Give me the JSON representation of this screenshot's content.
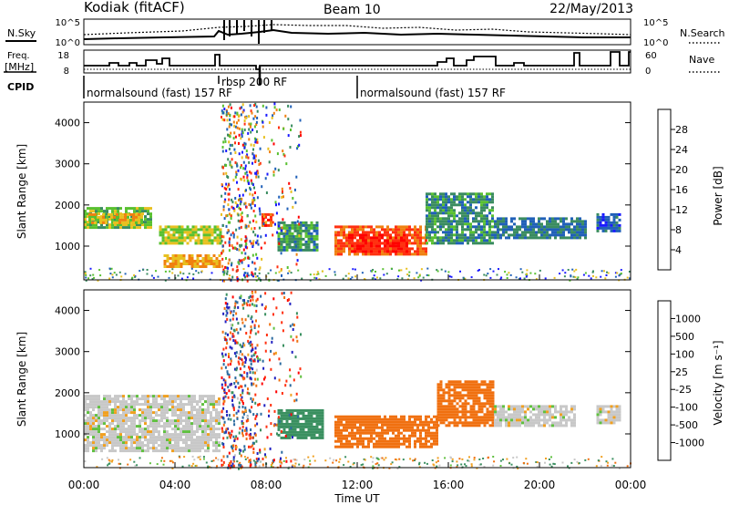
{
  "header": {
    "radar": "Kodiak (fitACF)",
    "beam": "Beam 10",
    "date": "22/May/2013"
  },
  "strip_labels": {
    "nsky": "N.Sky",
    "nsearch": "N.Search",
    "freq_top": "Freq.",
    "freq_unit": "[MHz]",
    "nave": "Nave",
    "cpid": "CPID",
    "nsky_ticks": [
      "10^5",
      "10^0"
    ],
    "nsearch_ticks": [
      "10^5",
      "10^0"
    ],
    "freq_ticks": [
      "18",
      "8"
    ],
    "nave_ticks": [
      "60",
      "0"
    ]
  },
  "cpid_segments": [
    {
      "label": "normalsound (fast) 157 RF",
      "start_hour": 0
    },
    {
      "label": "rbsp 200 RF",
      "start_hour": 6
    },
    {
      "label": "normalsound (fast) 157 RF",
      "start_hour": 12
    }
  ],
  "x_axis": {
    "label": "Time UT",
    "ticks": [
      "00:00",
      "04:00",
      "08:00",
      "12:00",
      "16:00",
      "20:00",
      "00:00"
    ],
    "range_hours": [
      0,
      24
    ]
  },
  "y_axis": {
    "label": "Slant Range [km]",
    "ticks": [
      "1000",
      "2000",
      "3000",
      "4000"
    ],
    "range_km": [
      180,
      4500
    ]
  },
  "colorbars": {
    "power": {
      "label": "Power [dB]",
      "ticks": [
        "4",
        "8",
        "12",
        "16",
        "20",
        "24",
        "28"
      ],
      "colors": [
        "#1a1aff",
        "#2060b8",
        "#3a8c60",
        "#58c030",
        "#e8c020",
        "#f08010",
        "#ff3010",
        "#ff0000"
      ]
    },
    "velocity": {
      "label": "Velocity [m s⁻¹]",
      "ticks": [
        "1000",
        "500",
        "100",
        "25",
        "-25",
        "-100",
        "-500",
        "-1000"
      ],
      "colors": [
        "#2020c0",
        "#2a6aa0",
        "#3a9060",
        "#60c040",
        "#c8c8c8",
        "#f0a020",
        "#f07010",
        "#ff3010",
        "#ff0000"
      ]
    }
  },
  "chart_data": {
    "type": "heatmap",
    "time_hours": [
      0,
      24
    ],
    "range_km": [
      180,
      4500
    ],
    "power_regions": [
      {
        "t0": 0.0,
        "t1": 3.0,
        "r0": 1450,
        "r1": 1950,
        "db": 14
      },
      {
        "t0": 0.2,
        "t1": 2.5,
        "r0": 1550,
        "r1": 1800,
        "db": 18
      },
      {
        "t0": 3.3,
        "t1": 6.0,
        "r0": 1100,
        "r1": 1500,
        "db": 16
      },
      {
        "t0": 3.5,
        "t1": 6.0,
        "r0": 500,
        "r1": 800,
        "db": 20
      },
      {
        "t0": 7.8,
        "t1": 8.2,
        "r0": 1500,
        "r1": 1800,
        "db": 26
      },
      {
        "t0": 8.5,
        "t1": 10.2,
        "r0": 900,
        "r1": 1600,
        "db": 10
      },
      {
        "t0": 11.0,
        "t1": 15.0,
        "r0": 800,
        "r1": 1500,
        "db": 24
      },
      {
        "t0": 11.6,
        "t1": 14.2,
        "r0": 900,
        "r1": 1300,
        "db": 28
      },
      {
        "t0": 15.0,
        "t1": 18.0,
        "r0": 1100,
        "r1": 2300,
        "db": 10
      },
      {
        "t0": 18.0,
        "t1": 22.0,
        "r0": 1200,
        "r1": 1700,
        "db": 8
      },
      {
        "t0": 22.5,
        "t1": 23.5,
        "r0": 1400,
        "r1": 1800,
        "db": 6
      }
    ],
    "velocity_regions": [
      {
        "t0": 0.0,
        "t1": 6.0,
        "r0": 600,
        "r1": 1950,
        "v": 0
      },
      {
        "t0": 8.5,
        "t1": 10.5,
        "r0": 900,
        "r1": 1600,
        "v": 150
      },
      {
        "t0": 11.0,
        "t1": 15.5,
        "r0": 700,
        "r1": 1450,
        "v": -300
      },
      {
        "t0": 15.5,
        "t1": 18.0,
        "r0": 1200,
        "r1": 2300,
        "v": -400
      },
      {
        "t0": 18.0,
        "t1": 21.5,
        "r0": 1200,
        "r1": 1700,
        "v": 0
      },
      {
        "t0": 22.5,
        "t1": 23.5,
        "r0": 1300,
        "r1": 1700,
        "v": 0
      }
    ],
    "frequency_mhz": {
      "low": 10,
      "high": 12
    }
  }
}
